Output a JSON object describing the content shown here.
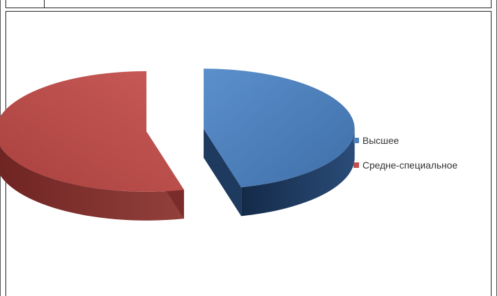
{
  "chart_data": {
    "type": "pie",
    "title": "",
    "three_d": true,
    "exploded": true,
    "legend_position": "right",
    "categories": [
      "Высшее",
      "Средне-специальное"
    ],
    "values": [
      46,
      54
    ],
    "colors": [
      "#4F81BD",
      "#C0504D"
    ],
    "side_colors": [
      "#1F3A5F",
      "#7A2C2A"
    ]
  }
}
